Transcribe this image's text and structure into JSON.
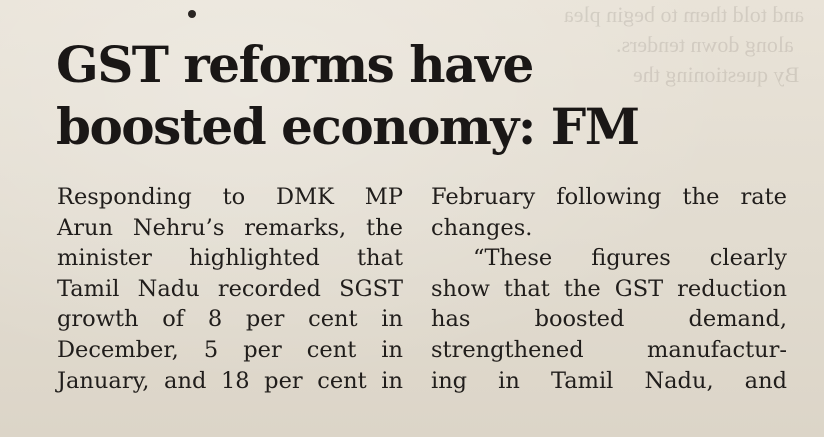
{
  "article": {
    "headline": {
      "line1": "GST reforms have",
      "line2": "boosted economy: FM"
    },
    "column_left": [
      "Responding to DMK MP",
      "Arun Nehru’s remarks, the",
      "minister highlighted that",
      "Tamil Nadu recorded SGST",
      "growth of 8 per cent in",
      "December, 5 per cent in",
      "January, and 18 per cent in"
    ],
    "column_right": [
      "February following the rate",
      "changes.",
      "“These figures clearly",
      "show that the GST reduction",
      "has boosted demand,",
      "strengthened manufactur-",
      "ing in Tamil Nadu, and"
    ]
  }
}
